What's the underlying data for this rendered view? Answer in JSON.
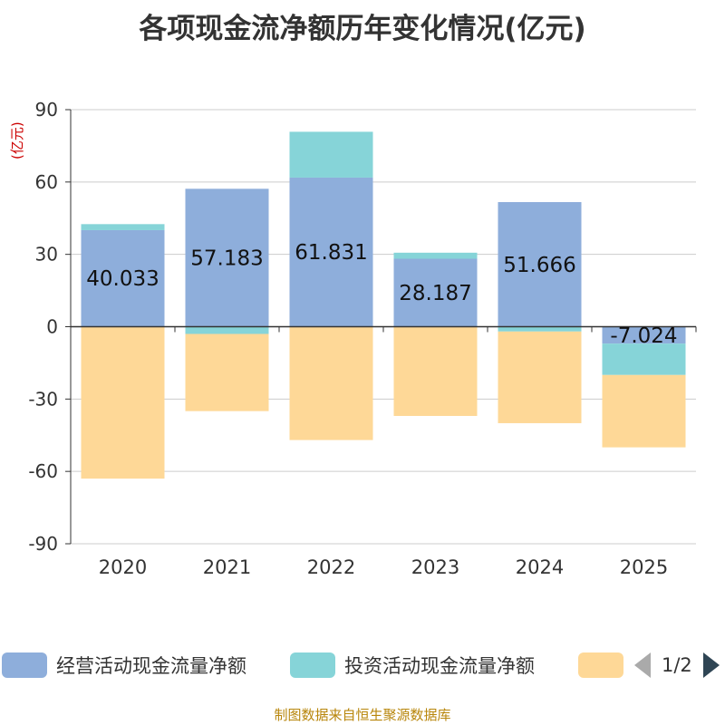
{
  "title": "各项现金流净额历年变化情况(亿元)",
  "unit_label": "(亿元)",
  "footer": "制图数据来自恒生聚源数据库",
  "legend": {
    "items": [
      {
        "label": "经营活动现金流量净额",
        "color": "#8eaedb"
      },
      {
        "label": "投资活动现金流量净额",
        "color": "#86d4d8"
      },
      {
        "label": "",
        "color": "#fed897"
      }
    ],
    "page_text": "1/2"
  },
  "chart_data": {
    "type": "bar",
    "stacked": true,
    "categories": [
      "2020",
      "2021",
      "2022",
      "2023",
      "2024",
      "2025"
    ],
    "ylim": [
      -90,
      90
    ],
    "yticks": [
      90,
      60,
      30,
      0,
      -30,
      -60,
      -90
    ],
    "series": [
      {
        "name": "经营活动现金流量净额",
        "color": "#8eaedb",
        "values": [
          40.033,
          57.183,
          61.831,
          28.187,
          51.666,
          -7.024
        ],
        "labels": [
          "40.033",
          "57.183",
          "61.831",
          "28.187",
          "51.666",
          "-7.024"
        ]
      },
      {
        "name": "投资活动现金流量净额",
        "color": "#86d4d8",
        "values": [
          2.5,
          -3,
          19,
          2.5,
          -2,
          -13
        ]
      },
      {
        "name": "",
        "color": "#fed897",
        "values": [
          -63,
          -32,
          -47,
          -37,
          -38,
          -30
        ]
      }
    ]
  }
}
